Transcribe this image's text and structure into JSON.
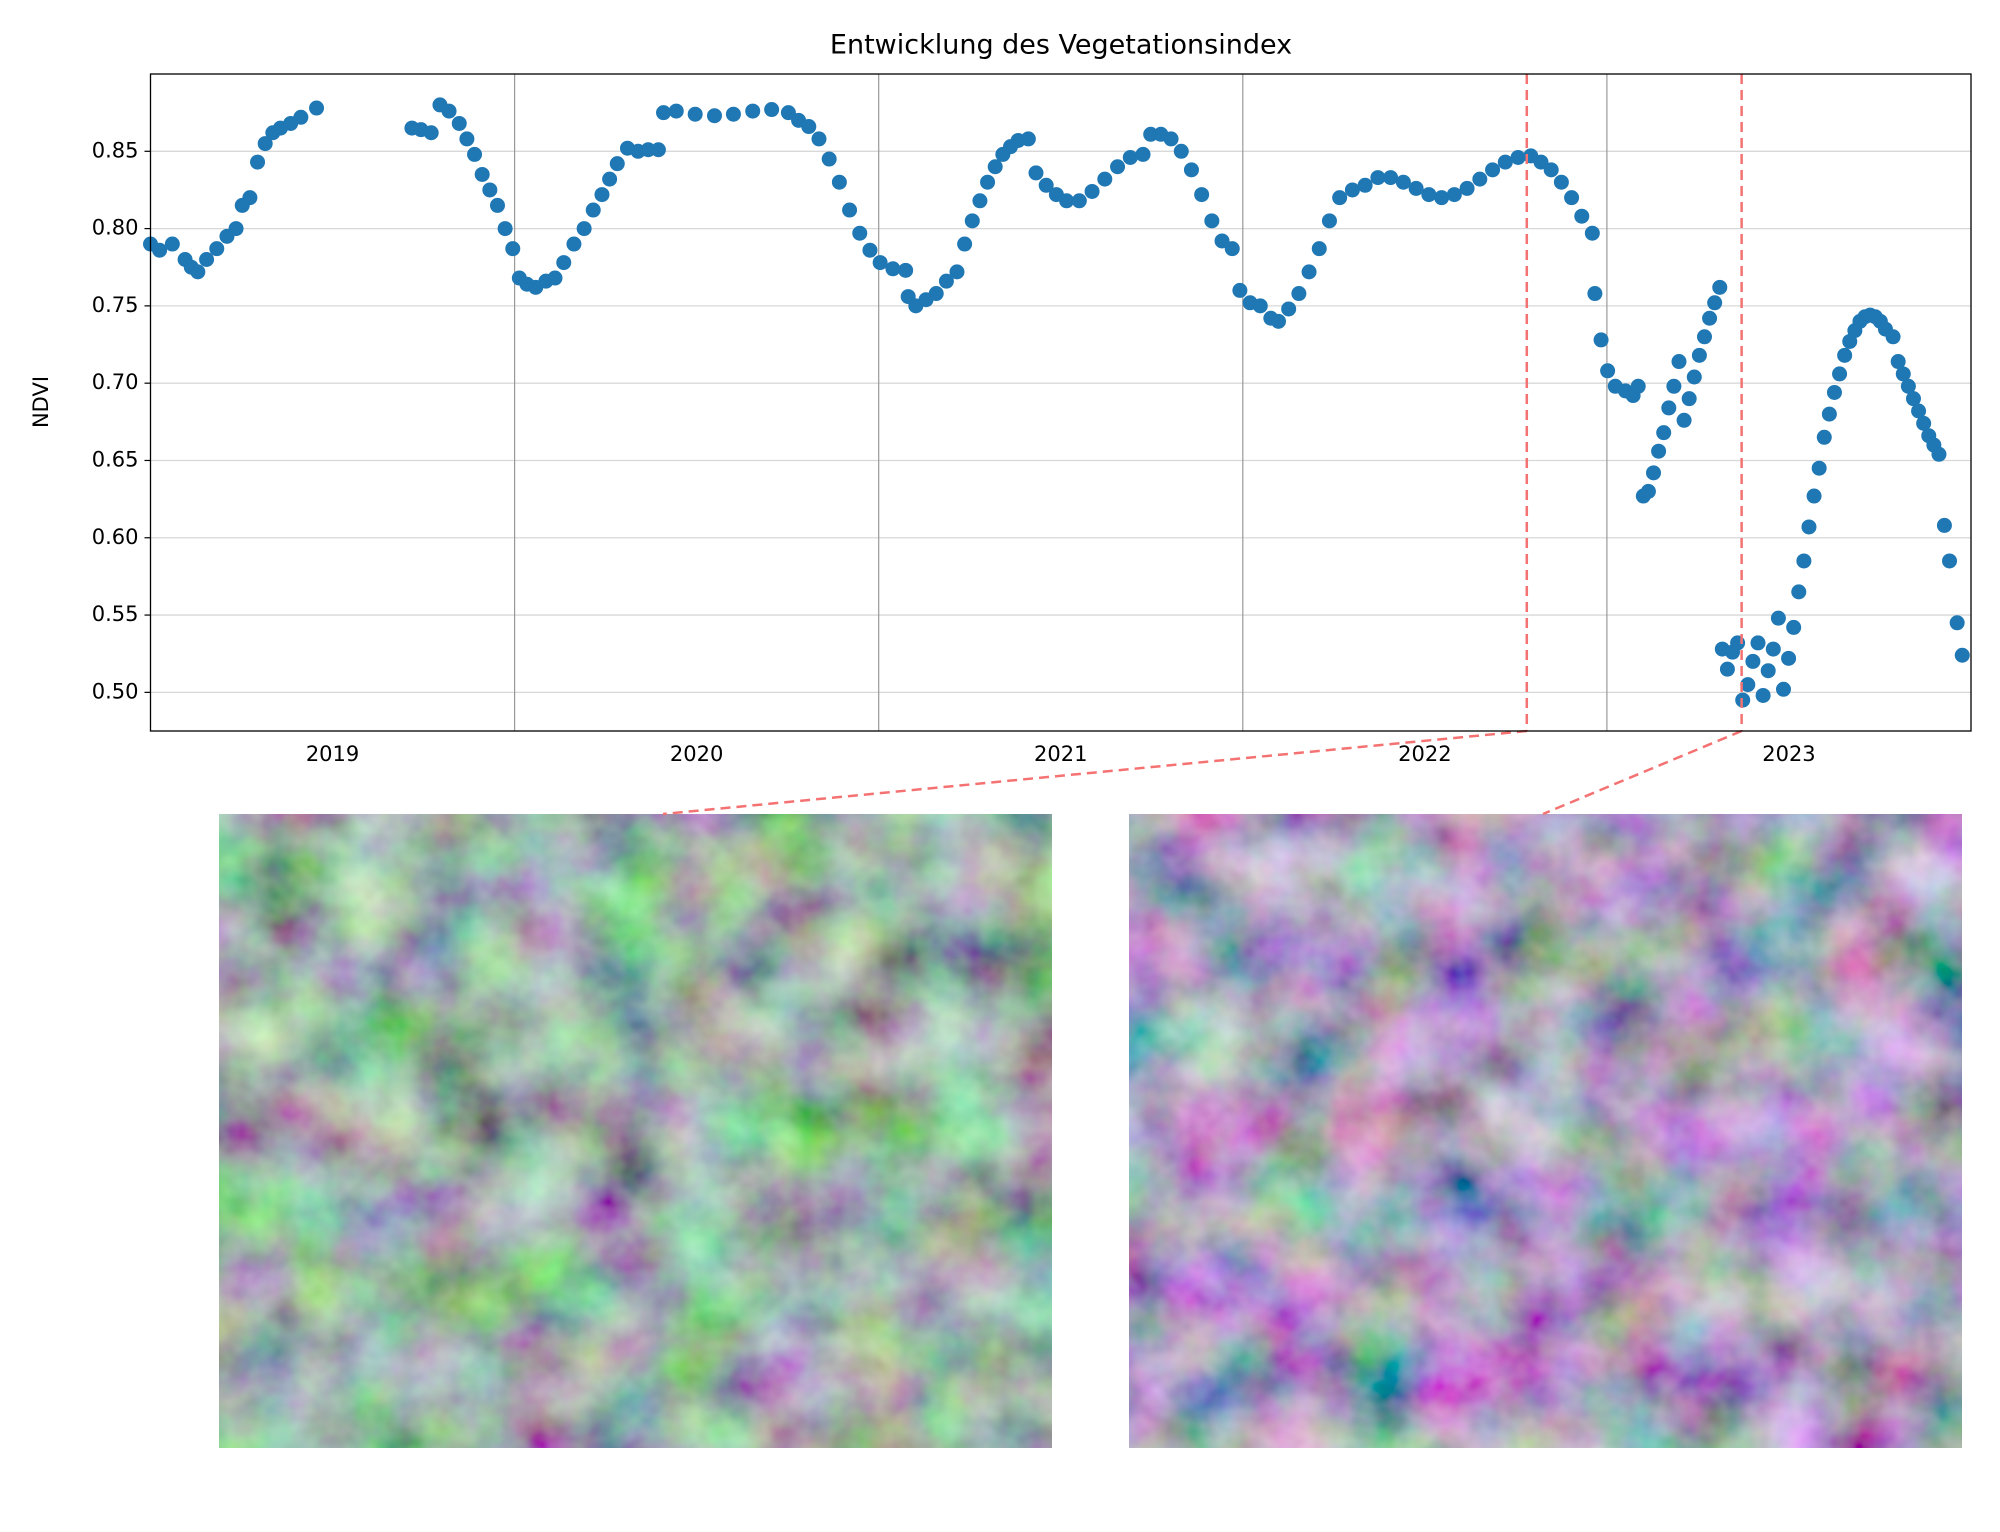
{
  "chart_data": {
    "type": "scatter",
    "title": "Entwicklung des Vegetationsindex",
    "ylabel": "NDVI",
    "color": "#1f77b4",
    "x": [
      2019.0,
      2019.025,
      2019.06,
      2019.095,
      2019.112,
      2019.13,
      2019.154,
      2019.182,
      2019.21,
      2019.235,
      2019.252,
      2019.273,
      2019.294,
      2019.315,
      2019.336,
      2019.357,
      2019.385,
      2019.413,
      2019.456,
      2019.718,
      2019.743,
      2019.771,
      2019.795,
      2019.82,
      2019.848,
      2019.869,
      2019.89,
      2019.911,
      2019.932,
      2019.953,
      2019.974,
      2019.995,
      2020.013,
      2020.034,
      2020.058,
      2020.086,
      2020.111,
      2020.135,
      2020.163,
      2020.191,
      2020.216,
      2020.24,
      2020.261,
      2020.282,
      2020.31,
      2020.339,
      2020.367,
      2020.395,
      2020.409,
      2020.444,
      2020.496,
      2020.549,
      2020.601,
      2020.654,
      2020.706,
      2020.752,
      2020.78,
      2020.808,
      2020.836,
      2020.864,
      2020.892,
      2020.92,
      2020.948,
      2020.976,
      2021.004,
      2021.039,
      2021.074,
      2021.081,
      2021.102,
      2021.13,
      2021.158,
      2021.186,
      2021.215,
      2021.236,
      2021.257,
      2021.278,
      2021.299,
      2021.32,
      2021.341,
      2021.362,
      2021.383,
      2021.411,
      2021.432,
      2021.46,
      2021.488,
      2021.516,
      2021.551,
      2021.586,
      2021.621,
      2021.656,
      2021.691,
      2021.726,
      2021.747,
      2021.775,
      2021.803,
      2021.831,
      2021.859,
      2021.887,
      2021.915,
      2021.943,
      2021.971,
      2021.992,
      2022.02,
      2022.048,
      2022.077,
      2022.098,
      2022.126,
      2022.154,
      2022.182,
      2022.21,
      2022.238,
      2022.266,
      2022.301,
      2022.336,
      2022.371,
      2022.406,
      2022.441,
      2022.476,
      2022.511,
      2022.546,
      2022.581,
      2022.616,
      2022.651,
      2022.686,
      2022.721,
      2022.756,
      2022.791,
      2022.819,
      2022.847,
      2022.875,
      2022.903,
      2022.931,
      2022.96,
      2022.967,
      2022.984,
      2023.002,
      2023.023,
      2023.051,
      2023.072,
      2023.086,
      2023.1,
      2023.114,
      2023.128,
      2023.142,
      2023.156,
      2023.17,
      2023.184,
      2023.198,
      2023.212,
      2023.226,
      2023.24,
      2023.254,
      2023.268,
      2023.282,
      2023.296,
      2023.31,
      2023.317,
      2023.331,
      2023.345,
      2023.359,
      2023.373,
      2023.387,
      2023.401,
      2023.415,
      2023.429,
      2023.443,
      2023.457,
      2023.471,
      2023.485,
      2023.499,
      2023.513,
      2023.527,
      2023.541,
      2023.555,
      2023.569,
      2023.583,
      2023.597,
      2023.611,
      2023.625,
      2023.639,
      2023.653,
      2023.667,
      2023.681,
      2023.695,
      2023.709,
      2023.723,
      2023.737,
      2023.751,
      2023.765,
      2023.786,
      2023.8,
      2023.814,
      2023.828,
      2023.842,
      2023.856,
      2023.87,
      2023.884,
      2023.898,
      2023.912,
      2023.927,
      2023.941,
      2023.962,
      2023.976
    ],
    "values": [
      0.79,
      0.786,
      0.79,
      0.78,
      0.775,
      0.772,
      0.78,
      0.787,
      0.795,
      0.8,
      0.815,
      0.82,
      0.843,
      0.855,
      0.862,
      0.865,
      0.868,
      0.872,
      0.878,
      0.865,
      0.864,
      0.862,
      0.88,
      0.876,
      0.868,
      0.858,
      0.848,
      0.835,
      0.825,
      0.815,
      0.8,
      0.787,
      0.768,
      0.764,
      0.762,
      0.766,
      0.768,
      0.778,
      0.79,
      0.8,
      0.812,
      0.822,
      0.832,
      0.842,
      0.852,
      0.85,
      0.851,
      0.851,
      0.875,
      0.876,
      0.874,
      0.873,
      0.874,
      0.876,
      0.877,
      0.875,
      0.87,
      0.866,
      0.858,
      0.845,
      0.83,
      0.812,
      0.797,
      0.786,
      0.778,
      0.774,
      0.773,
      0.756,
      0.75,
      0.754,
      0.758,
      0.766,
      0.772,
      0.79,
      0.805,
      0.818,
      0.83,
      0.84,
      0.848,
      0.853,
      0.857,
      0.858,
      0.836,
      0.828,
      0.822,
      0.818,
      0.818,
      0.824,
      0.832,
      0.84,
      0.846,
      0.848,
      0.861,
      0.861,
      0.858,
      0.85,
      0.838,
      0.822,
      0.805,
      0.792,
      0.787,
      0.76,
      0.752,
      0.75,
      0.742,
      0.74,
      0.748,
      0.758,
      0.772,
      0.787,
      0.805,
      0.82,
      0.825,
      0.828,
      0.833,
      0.833,
      0.83,
      0.826,
      0.822,
      0.82,
      0.822,
      0.826,
      0.832,
      0.838,
      0.843,
      0.846,
      0.847,
      0.843,
      0.838,
      0.83,
      0.82,
      0.808,
      0.797,
      0.758,
      0.728,
      0.708,
      0.698,
      0.695,
      0.692,
      0.698,
      0.627,
      0.63,
      0.642,
      0.656,
      0.668,
      0.684,
      0.698,
      0.714,
      0.676,
      0.69,
      0.704,
      0.718,
      0.73,
      0.742,
      0.752,
      0.762,
      0.528,
      0.515,
      0.526,
      0.532,
      0.495,
      0.505,
      0.52,
      0.532,
      0.498,
      0.514,
      0.528,
      0.548,
      0.502,
      0.522,
      0.542,
      0.565,
      0.585,
      0.607,
      0.627,
      0.645,
      0.665,
      0.68,
      0.694,
      0.706,
      0.718,
      0.727,
      0.734,
      0.74,
      0.743,
      0.744,
      0.743,
      0.74,
      0.735,
      0.73,
      0.714,
      0.706,
      0.698,
      0.69,
      0.682,
      0.674,
      0.666,
      0.66,
      0.654,
      0.608,
      0.585,
      0.545,
      0.524
    ],
    "xlim": [
      2019,
      2024
    ],
    "xticks": [
      {
        "value": 2019.5,
        "label": "2019"
      },
      {
        "value": 2020.5,
        "label": "2020"
      },
      {
        "value": 2021.5,
        "label": "2021"
      },
      {
        "value": 2022.5,
        "label": "2022"
      },
      {
        "value": 2023.5,
        "label": "2023"
      }
    ],
    "xgrid": [
      2020,
      2021,
      2022,
      2023
    ],
    "ylim": [
      0.475,
      0.9
    ],
    "yticks": [
      {
        "value": 0.5,
        "label": "0.50"
      },
      {
        "value": 0.55,
        "label": "0.55"
      },
      {
        "value": 0.6,
        "label": "0.60"
      },
      {
        "value": 0.65,
        "label": "0.65"
      },
      {
        "value": 0.7,
        "label": "0.70"
      },
      {
        "value": 0.75,
        "label": "0.75"
      },
      {
        "value": 0.8,
        "label": "0.80"
      },
      {
        "value": 0.85,
        "label": "0.85"
      }
    ],
    "grid": true,
    "vlines": {
      "values": [
        2022.78,
        2023.37
      ],
      "color": "#f47272"
    }
  }
}
